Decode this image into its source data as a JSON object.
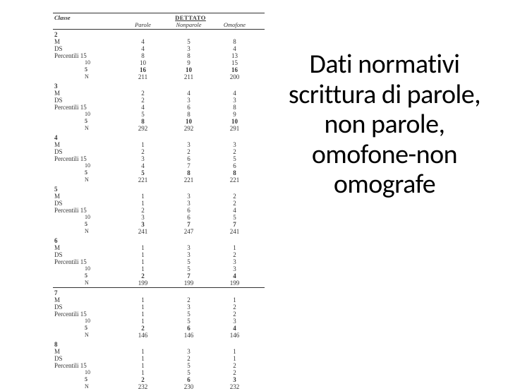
{
  "title": "Dati normativi scrittura di parole, non parole, omofone-non omografe",
  "table": {
    "header": {
      "classe": "Classe",
      "dettato": "DETTATO",
      "col1": "Parole",
      "col2": "Nonparole",
      "col3": "Omofone"
    },
    "groups": [
      {
        "classe": "2",
        "bordered": false,
        "rows": [
          {
            "lbl": "M",
            "indent": false,
            "bold": false,
            "c1": "4",
            "c2": "5",
            "c3": "8"
          },
          {
            "lbl": "DS",
            "indent": false,
            "bold": false,
            "c1": "4",
            "c2": "3",
            "c3": "4"
          },
          {
            "lbl": "Percentili   15",
            "indent": false,
            "bold": false,
            "c1": "8",
            "c2": "8",
            "c3": "13"
          },
          {
            "lbl": "10",
            "indent": true,
            "bold": false,
            "c1": "10",
            "c2": "9",
            "c3": "15"
          },
          {
            "lbl": "5",
            "indent": true,
            "bold": true,
            "c1": "16",
            "c2": "10",
            "c3": "16"
          },
          {
            "lbl": "N",
            "indent": true,
            "bold": false,
            "c1": "211",
            "c2": "211",
            "c3": "200"
          }
        ]
      },
      {
        "classe": "3",
        "bordered": false,
        "rows": [
          {
            "lbl": "M",
            "indent": false,
            "bold": false,
            "c1": "2",
            "c2": "4",
            "c3": "4"
          },
          {
            "lbl": "DS",
            "indent": false,
            "bold": false,
            "c1": "2",
            "c2": "3",
            "c3": "3"
          },
          {
            "lbl": "Percentili   15",
            "indent": false,
            "bold": false,
            "c1": "4",
            "c2": "6",
            "c3": "8"
          },
          {
            "lbl": "10",
            "indent": true,
            "bold": false,
            "c1": "5",
            "c2": "8",
            "c3": "9"
          },
          {
            "lbl": "5",
            "indent": true,
            "bold": true,
            "c1": "8",
            "c2": "10",
            "c3": "10"
          },
          {
            "lbl": "N",
            "indent": true,
            "bold": false,
            "c1": "292",
            "c2": "292",
            "c3": "291"
          }
        ]
      },
      {
        "classe": "4",
        "bordered": false,
        "rows": [
          {
            "lbl": "M",
            "indent": false,
            "bold": false,
            "c1": "1",
            "c2": "3",
            "c3": "3"
          },
          {
            "lbl": "DS",
            "indent": false,
            "bold": false,
            "c1": "2",
            "c2": "2",
            "c3": "2"
          },
          {
            "lbl": "Percentili   15",
            "indent": false,
            "bold": false,
            "c1": "3",
            "c2": "6",
            "c3": "5"
          },
          {
            "lbl": "10",
            "indent": true,
            "bold": false,
            "c1": "4",
            "c2": "7",
            "c3": "6"
          },
          {
            "lbl": "5",
            "indent": true,
            "bold": true,
            "c1": "5",
            "c2": "8",
            "c3": "8"
          },
          {
            "lbl": "N",
            "indent": true,
            "bold": false,
            "c1": "221",
            "c2": "221",
            "c3": "221"
          }
        ]
      },
      {
        "classe": "5",
        "bordered": false,
        "rows": [
          {
            "lbl": "M",
            "indent": false,
            "bold": false,
            "c1": "1",
            "c2": "3",
            "c3": "2"
          },
          {
            "lbl": "DS",
            "indent": false,
            "bold": false,
            "c1": "1",
            "c2": "3",
            "c3": "2"
          },
          {
            "lbl": "Percentili   15",
            "indent": false,
            "bold": false,
            "c1": "2",
            "c2": "6",
            "c3": "4"
          },
          {
            "lbl": "10",
            "indent": true,
            "bold": false,
            "c1": "3",
            "c2": "6",
            "c3": "5"
          },
          {
            "lbl": "5",
            "indent": true,
            "bold": true,
            "c1": "3",
            "c2": "7",
            "c3": "7"
          },
          {
            "lbl": "N",
            "indent": true,
            "bold": false,
            "c1": "241",
            "c2": "247",
            "c3": "241"
          }
        ]
      },
      {
        "classe": "6",
        "bordered": true,
        "rows": [
          {
            "lbl": "M",
            "indent": false,
            "bold": false,
            "c1": "1",
            "c2": "3",
            "c3": "1"
          },
          {
            "lbl": "DS",
            "indent": false,
            "bold": false,
            "c1": "1",
            "c2": "3",
            "c3": "2"
          },
          {
            "lbl": "Percentili   15",
            "indent": false,
            "bold": false,
            "c1": "1",
            "c2": "5",
            "c3": "3"
          },
          {
            "lbl": "10",
            "indent": true,
            "bold": false,
            "c1": "1",
            "c2": "5",
            "c3": "3"
          },
          {
            "lbl": "5",
            "indent": true,
            "bold": true,
            "c1": "2",
            "c2": "7",
            "c3": "4"
          },
          {
            "lbl": "N",
            "indent": true,
            "bold": false,
            "c1": "199",
            "c2": "199",
            "c3": "199"
          }
        ]
      },
      {
        "classe": "7",
        "bordered": false,
        "rows": [
          {
            "lbl": "M",
            "indent": false,
            "bold": false,
            "c1": "1",
            "c2": "2",
            "c3": "1"
          },
          {
            "lbl": "DS",
            "indent": false,
            "bold": false,
            "c1": "1",
            "c2": "3",
            "c3": "2"
          },
          {
            "lbl": "Percentili   15",
            "indent": false,
            "bold": false,
            "c1": "1",
            "c2": "5",
            "c3": "2"
          },
          {
            "lbl": "10",
            "indent": true,
            "bold": false,
            "c1": "1",
            "c2": "5",
            "c3": "3"
          },
          {
            "lbl": "5",
            "indent": true,
            "bold": true,
            "c1": "2",
            "c2": "6",
            "c3": "4"
          },
          {
            "lbl": "N",
            "indent": true,
            "bold": false,
            "c1": "146",
            "c2": "146",
            "c3": "146"
          }
        ]
      },
      {
        "classe": "8",
        "bordered": false,
        "rows": [
          {
            "lbl": "M",
            "indent": false,
            "bold": false,
            "c1": "1",
            "c2": "3",
            "c3": "1"
          },
          {
            "lbl": "DS",
            "indent": false,
            "bold": false,
            "c1": "1",
            "c2": "2",
            "c3": "1"
          },
          {
            "lbl": "Percentili   15",
            "indent": false,
            "bold": false,
            "c1": "1",
            "c2": "5",
            "c3": "2"
          },
          {
            "lbl": "10",
            "indent": true,
            "bold": false,
            "c1": "1",
            "c2": "5",
            "c3": "2"
          },
          {
            "lbl": "5",
            "indent": true,
            "bold": true,
            "c1": "2",
            "c2": "6",
            "c3": "3"
          },
          {
            "lbl": "N",
            "indent": true,
            "bold": false,
            "c1": "232",
            "c2": "230",
            "c3": "232"
          }
        ]
      }
    ]
  }
}
